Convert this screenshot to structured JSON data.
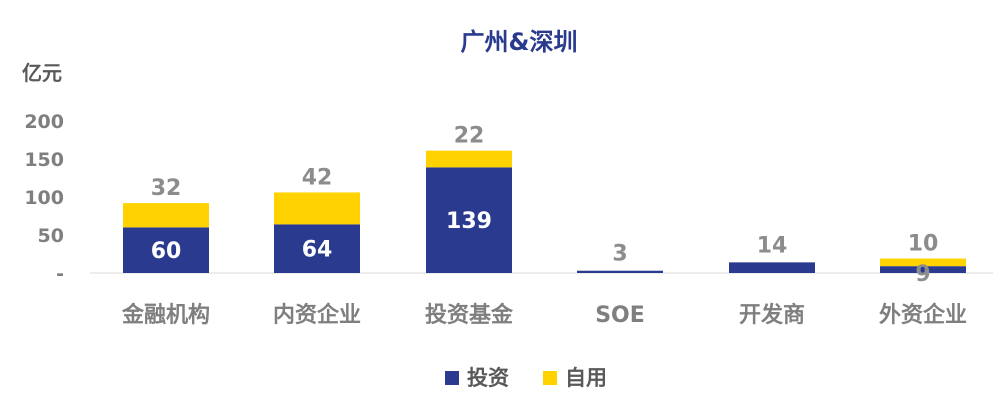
{
  "chart_data": {
    "type": "bar",
    "stacked": true,
    "title": "广州&深圳",
    "ylabel": "亿元",
    "ylim": [
      0,
      200
    ],
    "yticks": [
      "-",
      "50",
      "100",
      "150",
      "200"
    ],
    "categories": [
      "金融机构",
      "内资企业",
      "投资基金",
      "SOE",
      "开发商",
      "外资企业"
    ],
    "series": [
      {
        "name": "投资",
        "color": "#2a3b8f",
        "values": [
          60,
          64,
          139,
          3,
          14,
          9
        ]
      },
      {
        "name": "自用",
        "color": "#ffd200",
        "values": [
          32,
          42,
          22,
          0,
          0,
          10
        ]
      }
    ],
    "data_labels": {
      "投资": [
        "60",
        "64",
        "139",
        "3",
        "14",
        "9"
      ],
      "自用": [
        "32",
        "42",
        "22",
        "",
        "",
        "10"
      ]
    },
    "legend_position": "bottom",
    "grid": false
  }
}
